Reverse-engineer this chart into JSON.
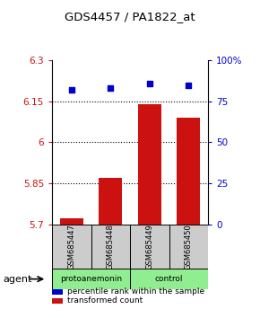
{
  "title": "GDS4457 / PA1822_at",
  "samples": [
    "GSM685447",
    "GSM685448",
    "GSM685449",
    "GSM685450"
  ],
  "bar_values": [
    5.72,
    5.87,
    6.14,
    6.09
  ],
  "percentile_values": [
    82,
    83,
    86,
    85
  ],
  "bar_color": "#cc1111",
  "dot_color": "#0000cc",
  "ylim_left": [
    5.7,
    6.3
  ],
  "ylim_right": [
    0,
    100
  ],
  "yticks_left": [
    5.7,
    5.85,
    6.0,
    6.15,
    6.3
  ],
  "yticks_right": [
    0,
    25,
    50,
    75,
    100
  ],
  "ytick_labels_left": [
    "5.7",
    "5.85",
    "6",
    "6.15",
    "6.3"
  ],
  "ytick_labels_right": [
    "0",
    "25",
    "50",
    "75",
    "100%"
  ],
  "gridlines_at": [
    5.85,
    6.0,
    6.15
  ],
  "groups": [
    {
      "label": "protoanemonin",
      "color": "#90ee90"
    },
    {
      "label": "control",
      "color": "#90ee90"
    }
  ],
  "agent_label": "agent",
  "legend": [
    {
      "color": "#cc1111",
      "label": "transformed count"
    },
    {
      "color": "#0000cc",
      "label": "percentile rank within the sample"
    }
  ],
  "bar_width": 0.6,
  "sample_box_color": "#cccccc"
}
